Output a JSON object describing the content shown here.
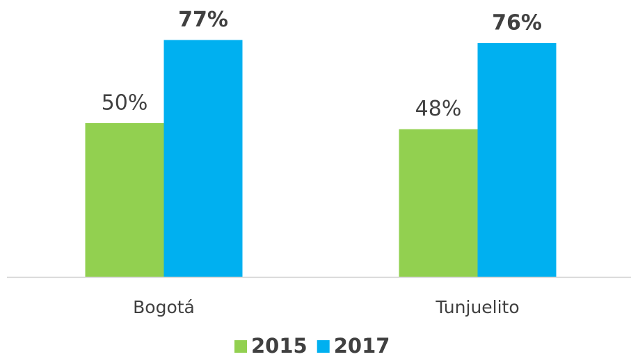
{
  "chart_data": {
    "type": "bar",
    "categories": [
      "Bogotá",
      "Tunjuelito"
    ],
    "series": [
      {
        "name": "2015",
        "color": "#92d050",
        "values": [
          50,
          48
        ],
        "value_labels": [
          "50%",
          "48%"
        ]
      },
      {
        "name": "2017",
        "color": "#00b0f0",
        "values": [
          77,
          76
        ],
        "value_labels": [
          "77%",
          "76%"
        ]
      }
    ],
    "ylim": [
      0,
      90
    ]
  }
}
